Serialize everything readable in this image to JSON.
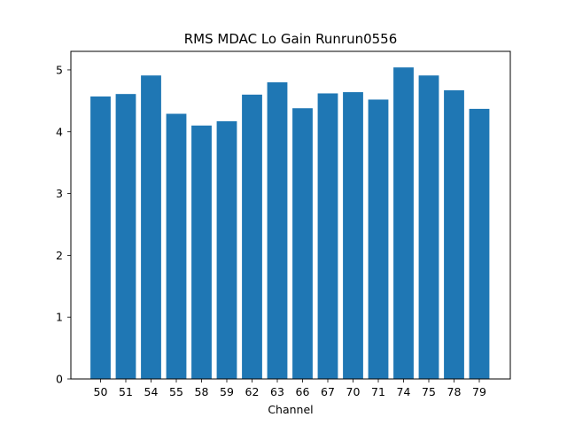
{
  "chart_data": {
    "type": "bar",
    "title": "RMS MDAC Lo Gain Runrun0556",
    "xlabel": "Channel",
    "ylabel": "",
    "categories": [
      "50",
      "51",
      "54",
      "55",
      "58",
      "59",
      "62",
      "63",
      "66",
      "67",
      "70",
      "71",
      "74",
      "75",
      "78",
      "79"
    ],
    "values": [
      4.57,
      4.61,
      4.91,
      4.29,
      4.1,
      4.17,
      4.6,
      4.8,
      4.38,
      4.62,
      4.64,
      4.52,
      5.04,
      4.91,
      4.67,
      4.37
    ],
    "ylim": [
      0,
      5.3
    ],
    "yticks": [
      "0",
      "1",
      "2",
      "3",
      "4",
      "5"
    ],
    "bar_color": "#1f77b4",
    "grid": false,
    "legend": "none"
  }
}
